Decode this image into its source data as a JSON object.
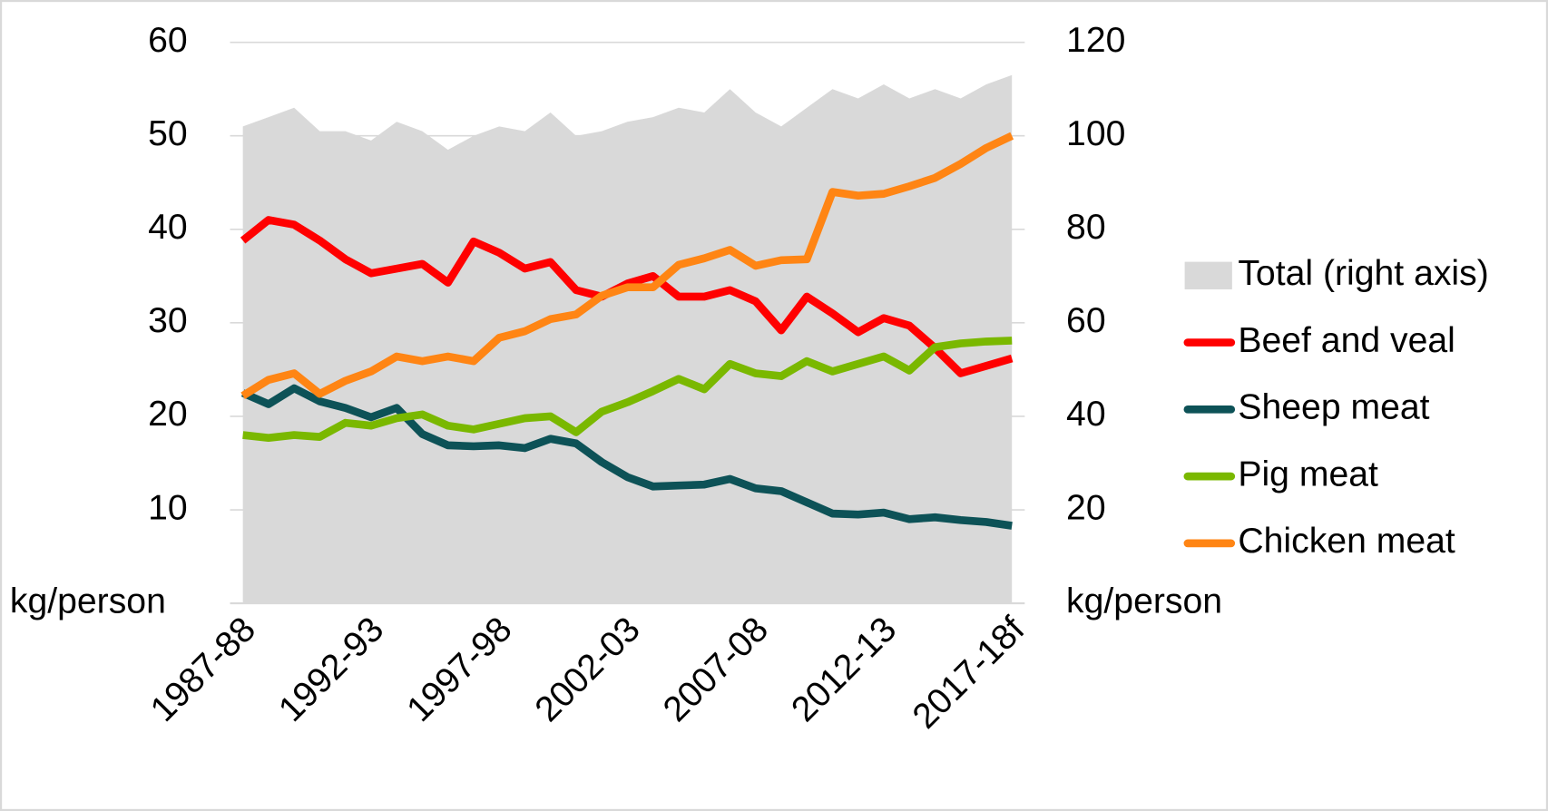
{
  "chart_data": {
    "type": "line",
    "y_label": "kg/person",
    "y2_label": "kg/person",
    "categories": [
      "1987-88",
      null,
      null,
      null,
      null,
      "1992-93",
      null,
      null,
      null,
      null,
      "1997-98",
      null,
      null,
      null,
      null,
      "2002-03",
      null,
      null,
      null,
      null,
      "2007-08",
      null,
      null,
      null,
      null,
      "2012-13",
      null,
      null,
      null,
      null,
      "2017-18f"
    ],
    "series": [
      {
        "name": "Total (right axis)",
        "type": "area",
        "axis": "y2",
        "color": "#d9d9d9",
        "values": [
          102,
          104,
          106,
          101,
          101,
          99,
          103,
          101,
          97,
          100,
          102,
          101,
          105,
          100,
          101,
          103,
          104,
          106,
          105,
          110,
          105,
          102,
          106,
          110,
          108,
          111,
          108,
          110,
          108,
          111,
          113
        ]
      },
      {
        "name": "Beef and veal",
        "color": "#ff0000",
        "values": [
          38.8,
          41,
          40.5,
          38.8,
          36.8,
          35.3,
          35.8,
          36.3,
          34.3,
          38.7,
          37.5,
          35.8,
          36.5,
          33.5,
          32.8,
          34.2,
          35,
          32.8,
          32.8,
          33.5,
          32.3,
          29.2,
          32.8,
          31,
          29,
          30.5,
          29.7,
          27.3,
          24.6,
          25.4,
          26.2
        ]
      },
      {
        "name": "Sheep meat",
        "color": "#0d5257",
        "values": [
          22.5,
          21.3,
          23,
          21.6,
          20.9,
          19.9,
          20.9,
          18.1,
          16.9,
          16.8,
          16.9,
          16.6,
          17.6,
          17.1,
          15.1,
          13.5,
          12.5,
          12.6,
          12.7,
          13.3,
          12.3,
          12,
          10.8,
          9.6,
          9.5,
          9.7,
          9,
          9.2,
          8.9,
          8.7,
          8.3
        ]
      },
      {
        "name": "Pig meat",
        "color": "#7ab800",
        "values": [
          18,
          17.7,
          18,
          17.8,
          19.3,
          19,
          19.8,
          20.2,
          19,
          18.6,
          19.2,
          19.8,
          20,
          18.3,
          20.5,
          21.5,
          22.7,
          24,
          22.9,
          25.6,
          24.6,
          24.3,
          25.9,
          24.8,
          25.6,
          26.4,
          24.9,
          27.4,
          27.8,
          28,
          28.1
        ]
      },
      {
        "name": "Chicken meat",
        "color": "#ff8514",
        "values": [
          22.2,
          23.9,
          24.6,
          22.4,
          23.8,
          24.8,
          26.4,
          25.9,
          26.4,
          25.9,
          28.4,
          29.1,
          30.4,
          30.9,
          32.9,
          33.8,
          33.8,
          36.2,
          36.9,
          37.8,
          36.1,
          36.7,
          36.8,
          44,
          43.6,
          43.8,
          44.6,
          45.5,
          47,
          48.7,
          50
        ]
      }
    ],
    "ylim": [
      0,
      60
    ],
    "yticks": [
      10,
      20,
      30,
      40,
      50,
      60
    ],
    "y2lim": [
      0,
      120
    ],
    "y2ticks": [
      20,
      40,
      60,
      80,
      100,
      120
    ],
    "grid": true,
    "legend": "right"
  }
}
